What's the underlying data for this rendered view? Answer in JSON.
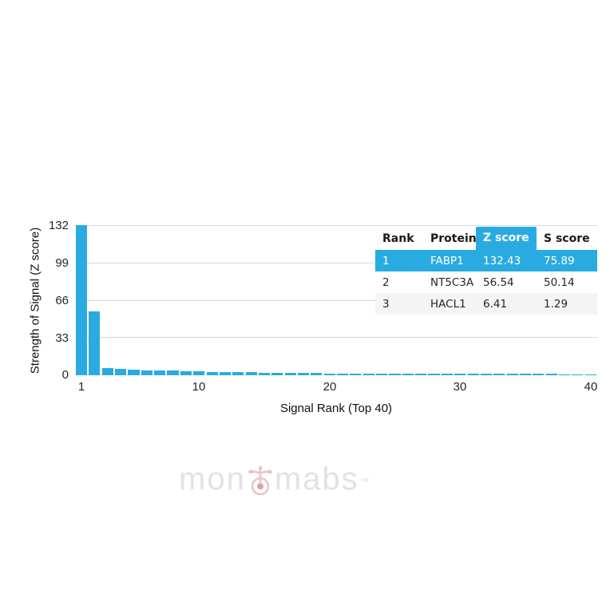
{
  "axes": {
    "y_title": "Strength of Signal (Z score)",
    "x_title": "Signal Rank (Top 40)",
    "y_ticks": [
      "132",
      "99",
      "66",
      "33",
      "0"
    ],
    "x_ticks": [
      "1",
      "10",
      "20",
      "30",
      "40"
    ]
  },
  "chart_data": {
    "type": "bar",
    "title": "",
    "xlabel": "Signal Rank (Top 40)",
    "ylabel": "Strength of Signal (Z score)",
    "x_range": [
      1,
      40
    ],
    "ylim": [
      0,
      132
    ],
    "y_gridlines": [
      0,
      33,
      66,
      99,
      132
    ],
    "bar_color": "#29abe2",
    "grid": true,
    "legend": false,
    "values": [
      132.43,
      56.54,
      6.41,
      5.6,
      5.2,
      4.5,
      4.3,
      4.1,
      3.5,
      3.2,
      2.8,
      2.7,
      2.6,
      2.5,
      2.4,
      2.1,
      2.0,
      1.9,
      1.8,
      1.7,
      1.6,
      1.6,
      1.5,
      1.5,
      1.5,
      1.4,
      1.4,
      1.4,
      1.3,
      1.3,
      1.3,
      1.2,
      1.2,
      1.2,
      1.1,
      1.1,
      1.1,
      1.0,
      1.0,
      1.0
    ]
  },
  "table": {
    "headers": [
      "Rank",
      "Protein",
      "Z score",
      "S score"
    ],
    "highlighted_header": "Z score",
    "rows": [
      {
        "rank": "1",
        "protein": "FABP1",
        "z_score": "132.43",
        "s_score": "75.89"
      },
      {
        "rank": "2",
        "protein": "NT5C3A",
        "z_score": "56.54",
        "s_score": "50.14"
      },
      {
        "rank": "3",
        "protein": "HACL1",
        "z_score": "6.41",
        "s_score": "1.29"
      }
    ]
  },
  "watermark": {
    "text_left": "mon",
    "text_right": "mabs",
    "tm": "™",
    "logo": "antibody-sprout-icon"
  },
  "colors": {
    "accent_blue": "#29abe2",
    "grid_line": "#d9d9d9",
    "row_alt_bg": "#f4f4f4",
    "watermark_gray": "#e2e2e4",
    "watermark_pink": "#eac5c5",
    "watermark_red": "#c25050"
  }
}
